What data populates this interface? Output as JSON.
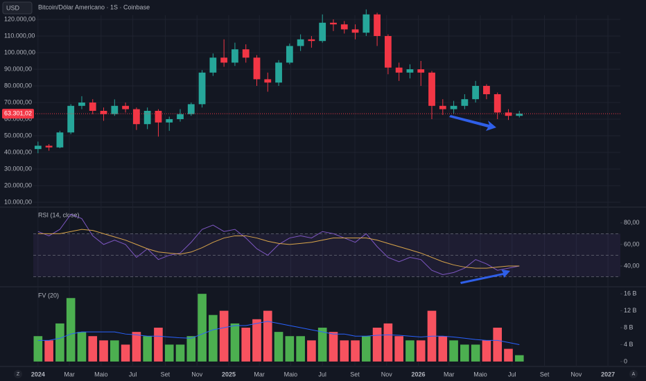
{
  "ui": {
    "left_button": "Z",
    "right_button": "A"
  },
  "chart_data": [
    {
      "type": "candlestick",
      "title": "Bitcoin/Dólar Americano · 1S · Coinbase",
      "currency": "USD",
      "up_color": "#26a69a",
      "down_color": "#f23645",
      "x": [
        0,
        3,
        6,
        9,
        12,
        15,
        18,
        21,
        24,
        27,
        30,
        33,
        36,
        39,
        42,
        45,
        48,
        51,
        54,
        57,
        60,
        63,
        66,
        69,
        72,
        75,
        78,
        81,
        84,
        87,
        90,
        93,
        96,
        99,
        102,
        105,
        108,
        111,
        114,
        117,
        120,
        123,
        126,
        129,
        132
      ],
      "open": [
        42000,
        44000,
        43000,
        52000,
        68000,
        70000,
        65000,
        63000,
        68000,
        66000,
        57000,
        65000,
        58000,
        60000,
        63000,
        69000,
        88000,
        97000,
        94000,
        102000,
        97000,
        84000,
        82000,
        94000,
        104000,
        108000,
        107000,
        118000,
        117000,
        114000,
        112000,
        123000,
        110000,
        91000,
        88000,
        90000,
        88000,
        68000,
        66000,
        68000,
        72000,
        80000,
        75000,
        64000,
        62000
      ],
      "high": [
        46500,
        45000,
        53000,
        69000,
        73800,
        72000,
        67000,
        71900,
        70000,
        67000,
        67000,
        66000,
        61500,
        66000,
        70000,
        89500,
        99500,
        108000,
        106000,
        105000,
        98500,
        88000,
        95500,
        105500,
        111000,
        110000,
        123000,
        120000,
        119000,
        117000,
        126000,
        124000,
        111000,
        94000,
        93000,
        95000,
        89000,
        72000,
        71000,
        75000,
        83000,
        81000,
        76000,
        66000,
        65000
      ],
      "low": [
        39500,
        41000,
        42500,
        51000,
        66000,
        63000,
        59000,
        62000,
        64000,
        53500,
        54000,
        49500,
        53000,
        58500,
        62000,
        67000,
        86000,
        91500,
        92000,
        94000,
        80000,
        76500,
        80000,
        93000,
        101000,
        103000,
        106000,
        113000,
        111500,
        108000,
        110000,
        104000,
        87000,
        83000,
        84500,
        80000,
        60000,
        62500,
        63000,
        66000,
        70000,
        72000,
        60000,
        59500,
        61000
      ],
      "close": [
        44000,
        43000,
        52000,
        68000,
        70000,
        65000,
        63000,
        68000,
        66000,
        57000,
        65000,
        58000,
        60000,
        63000,
        69000,
        88000,
        97000,
        94000,
        102000,
        97000,
        84000,
        82000,
        94000,
        104000,
        108000,
        107000,
        118000,
        117000,
        114000,
        112000,
        123000,
        110000,
        91000,
        88000,
        90000,
        88000,
        68000,
        66000,
        68000,
        72000,
        80000,
        75000,
        64000,
        62000,
        63301.02
      ],
      "last_price": {
        "value": 63301.02,
        "label": "63.301,02"
      },
      "ylim": [
        7500,
        131667
      ],
      "yticks": [
        {
          "value": 10000,
          "label": "10.000,00"
        },
        {
          "value": 20000,
          "label": "20.000,00"
        },
        {
          "value": 30000,
          "label": "30.000,00"
        },
        {
          "value": 40000,
          "label": "40.000,00"
        },
        {
          "value": 50000,
          "label": "50.000,00"
        },
        {
          "value": 60000,
          "label": "60.000,00"
        },
        {
          "value": 70000,
          "label": "70.000,00"
        },
        {
          "value": 80000,
          "label": "80.000,00"
        },
        {
          "value": 90000,
          "label": "90.000,00"
        },
        {
          "value": 100000,
          "label": "100.000,00"
        },
        {
          "value": 110000,
          "label": "110.000,00"
        },
        {
          "value": 120000,
          "label": "120.000,00"
        }
      ]
    },
    {
      "type": "line",
      "title": "RSI (14, close)",
      "x": [
        0,
        3,
        6,
        9,
        12,
        15,
        18,
        21,
        24,
        27,
        30,
        33,
        36,
        39,
        42,
        45,
        48,
        51,
        54,
        57,
        60,
        63,
        66,
        69,
        72,
        75,
        78,
        81,
        84,
        87,
        90,
        93,
        96,
        99,
        102,
        105,
        108,
        111,
        114,
        117,
        120,
        123,
        126,
        129,
        132
      ],
      "series": [
        {
          "color": "#7e57c2",
          "values": [
            72,
            68,
            74,
            88,
            84,
            68,
            60,
            64,
            60,
            48,
            56,
            46,
            50,
            52,
            62,
            74,
            78,
            72,
            74,
            66,
            56,
            50,
            60,
            66,
            68,
            66,
            72,
            70,
            66,
            62,
            70,
            58,
            48,
            44,
            48,
            46,
            36,
            32,
            34,
            38,
            46,
            42,
            36,
            38,
            40
          ]
        },
        {
          "color": "#d9a54a",
          "values": [
            70,
            70,
            70,
            72,
            74,
            73,
            70,
            67,
            64,
            60,
            56,
            53,
            52,
            51,
            53,
            57,
            62,
            66,
            68,
            68,
            66,
            63,
            61,
            60,
            61,
            62,
            64,
            66,
            66,
            66,
            66,
            64,
            61,
            58,
            55,
            52,
            48,
            44,
            41,
            39,
            38,
            38,
            39,
            40,
            40
          ]
        }
      ],
      "bands": [
        30,
        50,
        70
      ],
      "ylim": [
        22,
        94
      ],
      "yticks": [
        {
          "value": 40,
          "label": "40,00"
        },
        {
          "value": 60,
          "label": "60,00"
        },
        {
          "value": 80,
          "label": "80,00"
        }
      ]
    },
    {
      "type": "bar",
      "title": "FV (20)",
      "up_color": "#4caf50",
      "down_color": "#f7525f",
      "x": [
        0,
        3,
        6,
        9,
        12,
        15,
        18,
        21,
        24,
        27,
        30,
        33,
        36,
        39,
        42,
        45,
        48,
        51,
        54,
        57,
        60,
        63,
        66,
        69,
        72,
        75,
        78,
        81,
        84,
        87,
        90,
        93,
        96,
        99,
        102,
        105,
        108,
        111,
        114,
        117,
        120,
        123,
        126,
        129,
        132
      ],
      "values": [
        6,
        5,
        9,
        15,
        7,
        6,
        5,
        5,
        4,
        7,
        6,
        8,
        4,
        4,
        6,
        16,
        11,
        12,
        9,
        8,
        10,
        12,
        7,
        6,
        6,
        5,
        8,
        7,
        5,
        5,
        6,
        8,
        9,
        6,
        5,
        5,
        12,
        6,
        5,
        4,
        4,
        5,
        8,
        3,
        1.5
      ],
      "ma": {
        "color": "#2962ff",
        "values": [
          5,
          5,
          5.5,
          6.5,
          7,
          7,
          7,
          7,
          6.5,
          6.3,
          6,
          6,
          5.8,
          5.6,
          5.5,
          6.5,
          7.5,
          8,
          8.5,
          8.5,
          9,
          9.5,
          9,
          8.5,
          8,
          7.5,
          7,
          6.5,
          6.5,
          6,
          6,
          6.2,
          6.3,
          6.2,
          6,
          5.8,
          6,
          6,
          5.8,
          5.5,
          5.2,
          5,
          5,
          4.5,
          4
        ]
      },
      "ylim": [
        -1,
        17.5
      ],
      "yticks": [
        0,
        {
          "value": 4,
          "label": "4 B"
        },
        {
          "value": 8,
          "label": "8 B"
        },
        {
          "value": 12,
          "label": "12 B"
        },
        {
          "value": 16,
          "label": "16 B"
        }
      ],
      "xlim": [
        -1.3,
        159.7
      ],
      "xticks": [
        {
          "value": 0,
          "label": "2024"
        },
        {
          "value": 8.6,
          "label": "Mar"
        },
        {
          "value": 17.3,
          "label": "Maio"
        },
        {
          "value": 26,
          "label": "Jul"
        },
        {
          "value": 34.9,
          "label": "Set"
        },
        {
          "value": 43.6,
          "label": "Nov"
        },
        {
          "value": 52.3,
          "label": "2025"
        },
        {
          "value": 60.7,
          "label": "Mar"
        },
        {
          "value": 69.3,
          "label": "Maio"
        },
        {
          "value": 78,
          "label": "Jul"
        },
        {
          "value": 86.9,
          "label": "Set"
        },
        {
          "value": 95.6,
          "label": "Nov"
        },
        {
          "value": 104.3,
          "label": "2026"
        },
        {
          "value": 112.7,
          "label": "Mar"
        },
        {
          "value": 121.3,
          "label": "Maio"
        },
        {
          "value": 130,
          "label": "Jul"
        },
        {
          "value": 138.9,
          "label": "Set"
        },
        {
          "value": 147.6,
          "label": "Nov"
        },
        {
          "value": 156.3,
          "label": "2027"
        }
      ]
    }
  ]
}
